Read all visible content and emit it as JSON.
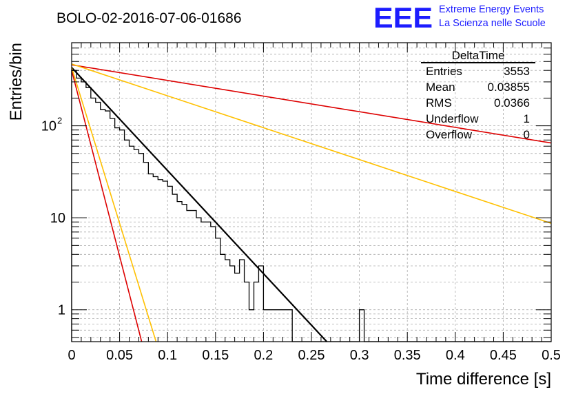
{
  "header": {
    "run_title": "BOLO-02-2016-07-06-01686",
    "logo_letters": "EEE",
    "logo_line1": "Extreme Energy Events",
    "logo_line2": "La Scienza nelle Scuole"
  },
  "stats_box": {
    "title": "DeltaTime",
    "rows": [
      {
        "label": "Entries",
        "value": "3553"
      },
      {
        "label": "Mean",
        "value": "0.03855"
      },
      {
        "label": "RMS",
        "value": "0.0366"
      },
      {
        "label": "Underflow",
        "value": "1"
      },
      {
        "label": "Overflow",
        "value": "0"
      }
    ]
  },
  "chart_data": {
    "type": "histogram",
    "xlabel": "Time difference [s]",
    "ylabel": "Entries/bin",
    "xlim": [
      0,
      0.5
    ],
    "ylim": [
      0.45,
      800
    ],
    "y_scale": "log",
    "grid": true,
    "x_ticks": [
      "0",
      "0.05",
      "0.1",
      "0.15",
      "0.2",
      "0.25",
      "0.3",
      "0.35",
      "0.4",
      "0.45",
      "0.5"
    ],
    "y_ticks": [
      {
        "value": 1,
        "label": "1"
      },
      {
        "value": 10,
        "label": "10"
      },
      {
        "value": 100,
        "label": "10",
        "exp": "2"
      }
    ],
    "histogram": {
      "bin_width": 0.005,
      "color": "#000000",
      "counts": [
        400,
        330,
        300,
        260,
        200,
        180,
        150,
        145,
        120,
        95,
        90,
        70,
        60,
        55,
        50,
        40,
        30,
        28,
        26,
        25,
        22,
        18,
        15,
        14,
        12,
        12,
        10,
        9,
        9,
        8,
        6,
        4,
        3.5,
        3,
        2.5,
        3.5,
        2,
        1,
        2,
        3,
        1,
        1,
        1,
        1,
        1,
        1,
        0,
        0,
        0,
        0,
        0,
        0,
        0,
        0,
        0,
        0,
        0,
        0,
        0,
        0,
        1,
        0,
        0,
        0,
        0,
        0,
        0,
        0,
        0,
        0,
        0,
        0,
        0,
        0,
        0,
        0,
        0,
        0,
        0,
        0,
        0,
        0,
        0,
        0,
        0,
        0,
        0,
        0,
        0,
        0,
        0,
        0,
        0,
        0,
        0,
        0,
        0,
        0,
        0,
        0
      ]
    },
    "fits": [
      {
        "color": "#000000",
        "width": 2.2,
        "points": [
          [
            0,
            430
          ],
          [
            0.266,
            0.45
          ]
        ]
      },
      {
        "color": "#dd0000",
        "width": 1.6,
        "points": [
          [
            0,
            460
          ],
          [
            0.5,
            65
          ]
        ]
      },
      {
        "color": "#dd0000",
        "width": 1.6,
        "points": [
          [
            0,
            400
          ],
          [
            0.073,
            0.45
          ]
        ]
      },
      {
        "color": "#ffc000",
        "width": 1.6,
        "points": [
          [
            0,
            470
          ],
          [
            0.5,
            8.7
          ]
        ]
      },
      {
        "color": "#ffc000",
        "width": 1.6,
        "points": [
          [
            0,
            430
          ],
          [
            0.088,
            0.45
          ]
        ]
      }
    ]
  }
}
